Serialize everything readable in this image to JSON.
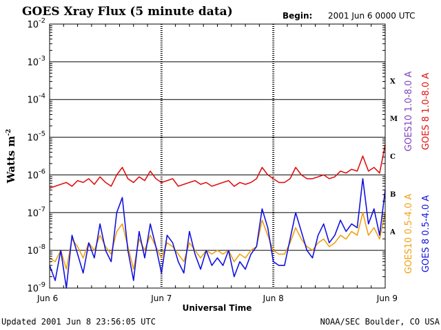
{
  "chart_data": {
    "type": "line",
    "title": "GOES Xray Flux (5 minute data)",
    "begin_label": "Begin:",
    "begin_value": "2001 Jun 6 0000 UTC",
    "xlabel": "Universal Time",
    "ylabel": "Watts m",
    "ylabel_sup": "-2",
    "yscale": "log",
    "ylim_exponent": [
      -9,
      -2
    ],
    "y_ticks": [
      {
        "base": "10",
        "exp": "-2"
      },
      {
        "base": "10",
        "exp": "-3"
      },
      {
        "base": "10",
        "exp": "-4"
      },
      {
        "base": "10",
        "exp": "-5"
      },
      {
        "base": "10",
        "exp": "-6"
      },
      {
        "base": "10",
        "exp": "-7"
      },
      {
        "base": "10",
        "exp": "-8"
      },
      {
        "base": "10",
        "exp": "-9"
      }
    ],
    "xlim_days": [
      0,
      3
    ],
    "x_ticks": [
      "Jun 6",
      "Jun 7",
      "Jun 8",
      "Jun 9"
    ],
    "flare_classes": [
      {
        "label": "X",
        "exponent": -4
      },
      {
        "label": "M",
        "exponent": -5
      },
      {
        "label": "C",
        "exponent": -6
      },
      {
        "label": "B",
        "exponent": -7
      },
      {
        "label": "A",
        "exponent": -8
      }
    ],
    "legend": [
      {
        "label": "GOES10 1.0-8.0 A",
        "color": "#7f3fbf"
      },
      {
        "label": "GOES 8 1.0-8.0 A",
        "color": "#e01010"
      },
      {
        "label": "GOES10 0.5-4.0 A",
        "color": "#f0a010"
      },
      {
        "label": "GOES 8 0.5-4.0 A",
        "color": "#1010e0"
      }
    ],
    "series": [
      {
        "name": "GOES 8 1.0-8.0 A",
        "color": "#e01010",
        "x_days": [
          0,
          0.05,
          0.1,
          0.15,
          0.2,
          0.25,
          0.3,
          0.35,
          0.4,
          0.45,
          0.5,
          0.55,
          0.6,
          0.65,
          0.7,
          0.75,
          0.8,
          0.85,
          0.9,
          0.95,
          1.0,
          1.05,
          1.1,
          1.15,
          1.2,
          1.25,
          1.3,
          1.35,
          1.4,
          1.45,
          1.5,
          1.55,
          1.6,
          1.65,
          1.7,
          1.75,
          1.8,
          1.85,
          1.9,
          1.95,
          2.0,
          2.05,
          2.1,
          2.15,
          2.2,
          2.25,
          2.3,
          2.35,
          2.4,
          2.45,
          2.5,
          2.55,
          2.6,
          2.65,
          2.7,
          2.75,
          2.8,
          2.85,
          2.9,
          2.95,
          3.0
        ],
        "log_values": [
          -6.35,
          -6.3,
          -6.25,
          -6.2,
          -6.3,
          -6.15,
          -6.2,
          -6.1,
          -6.25,
          -6.05,
          -6.2,
          -6.3,
          -6.0,
          -5.8,
          -6.1,
          -6.2,
          -6.05,
          -6.15,
          -5.9,
          -6.1,
          -6.2,
          -6.15,
          -6.1,
          -6.3,
          -6.25,
          -6.2,
          -6.15,
          -6.25,
          -6.2,
          -6.3,
          -6.25,
          -6.2,
          -6.15,
          -6.3,
          -6.2,
          -6.25,
          -6.2,
          -6.1,
          -5.8,
          -6.0,
          -6.1,
          -6.2,
          -6.2,
          -6.1,
          -5.8,
          -6.0,
          -6.1,
          -6.1,
          -6.05,
          -6.0,
          -6.1,
          -6.05,
          -5.9,
          -5.95,
          -5.85,
          -5.9,
          -5.5,
          -5.9,
          -5.8,
          -5.95,
          -5.2
        ]
      },
      {
        "name": "GOES10 0.5-4.0 A",
        "color": "#f0a010",
        "x_days": [
          0,
          0.05,
          0.1,
          0.15,
          0.2,
          0.25,
          0.3,
          0.35,
          0.4,
          0.45,
          0.5,
          0.55,
          0.6,
          0.65,
          0.7,
          0.75,
          0.8,
          0.85,
          0.9,
          0.95,
          1.0,
          1.05,
          1.1,
          1.15,
          1.2,
          1.25,
          1.3,
          1.35,
          1.4,
          1.45,
          1.5,
          1.55,
          1.6,
          1.65,
          1.7,
          1.75,
          1.8,
          1.85,
          1.9,
          1.95,
          2.0,
          2.05,
          2.1,
          2.15,
          2.2,
          2.25,
          2.3,
          2.35,
          2.4,
          2.45,
          2.5,
          2.55,
          2.6,
          2.65,
          2.7,
          2.75,
          2.8,
          2.85,
          2.9,
          2.95,
          3.0
        ],
        "log_values": [
          -8.2,
          -8.3,
          -8.0,
          -8.5,
          -7.7,
          -7.9,
          -8.2,
          -7.8,
          -8.0,
          -7.6,
          -7.9,
          -8.1,
          -7.5,
          -7.3,
          -7.9,
          -8.5,
          -7.7,
          -8.0,
          -7.6,
          -7.9,
          -8.2,
          -7.8,
          -7.9,
          -8.1,
          -8.3,
          -7.8,
          -8.0,
          -8.2,
          -8.0,
          -8.1,
          -8.0,
          -8.1,
          -8.0,
          -8.3,
          -8.1,
          -8.2,
          -8.0,
          -7.9,
          -7.2,
          -7.6,
          -8.0,
          -8.1,
          -8.1,
          -7.8,
          -7.4,
          -7.7,
          -7.9,
          -8.0,
          -7.8,
          -7.7,
          -7.9,
          -7.8,
          -7.6,
          -7.7,
          -7.5,
          -7.6,
          -7.0,
          -7.6,
          -7.4,
          -7.7,
          -7.0
        ]
      },
      {
        "name": "GOES 8 0.5-4.0 A",
        "color": "#1010e0",
        "x_days": [
          0,
          0.05,
          0.1,
          0.15,
          0.2,
          0.25,
          0.3,
          0.35,
          0.4,
          0.45,
          0.5,
          0.55,
          0.6,
          0.65,
          0.7,
          0.75,
          0.8,
          0.85,
          0.9,
          0.95,
          1.0,
          1.05,
          1.1,
          1.15,
          1.2,
          1.25,
          1.3,
          1.35,
          1.4,
          1.45,
          1.5,
          1.55,
          1.6,
          1.65,
          1.7,
          1.75,
          1.8,
          1.85,
          1.9,
          1.95,
          2.0,
          2.05,
          2.1,
          2.15,
          2.2,
          2.25,
          2.3,
          2.35,
          2.4,
          2.45,
          2.5,
          2.55,
          2.6,
          2.65,
          2.7,
          2.75,
          2.8,
          2.85,
          2.9,
          2.95,
          3.0
        ],
        "log_values": [
          -8.4,
          -8.8,
          -8.0,
          -9.0,
          -7.6,
          -8.1,
          -8.6,
          -7.8,
          -8.2,
          -7.3,
          -8.0,
          -8.3,
          -7.0,
          -6.6,
          -8.0,
          -8.8,
          -7.5,
          -8.2,
          -7.3,
          -7.9,
          -8.6,
          -7.6,
          -7.8,
          -8.3,
          -8.6,
          -7.5,
          -8.1,
          -8.5,
          -8.0,
          -8.4,
          -8.2,
          -8.4,
          -8.0,
          -8.7,
          -8.3,
          -8.5,
          -8.1,
          -7.9,
          -6.9,
          -7.4,
          -8.3,
          -8.4,
          -8.4,
          -7.7,
          -7.0,
          -7.5,
          -8.0,
          -8.2,
          -7.6,
          -7.3,
          -7.8,
          -7.6,
          -7.2,
          -7.5,
          -7.3,
          -7.4,
          -6.1,
          -7.3,
          -6.9,
          -7.6,
          -6.4
        ]
      }
    ]
  },
  "footer": {
    "updated": "Updated 2001 Jun  8 23:56:05 UTC",
    "credit": "NOAA/SEC Boulder, CO USA"
  }
}
